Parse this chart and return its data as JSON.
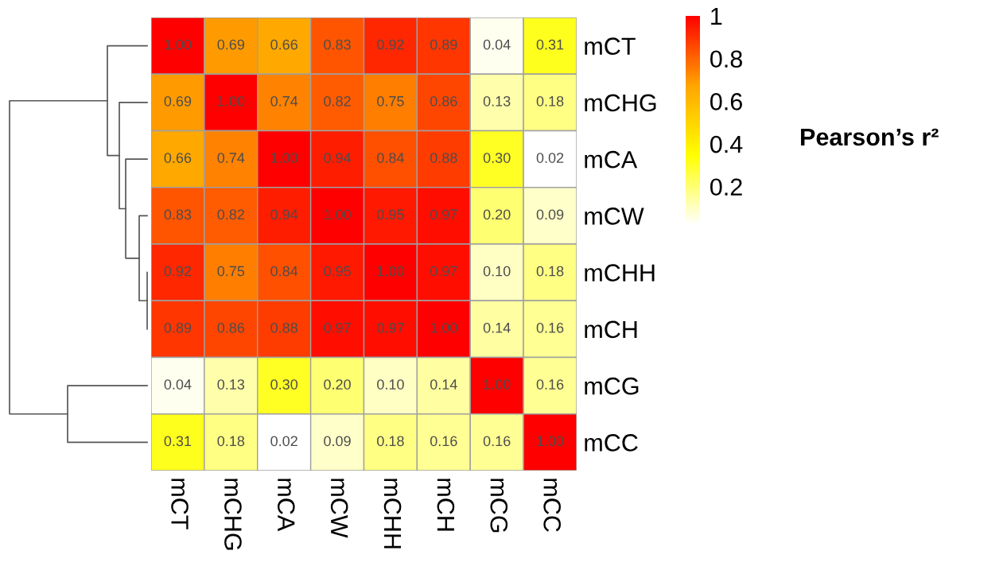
{
  "chart_data": {
    "type": "heatmap",
    "categories": [
      "mCT",
      "mCHG",
      "mCA",
      "mCW",
      "mCHH",
      "mCH",
      "mCG",
      "mCC"
    ],
    "y_categories": [
      "mCT",
      "mCHG",
      "mCA",
      "mCW",
      "mCHH",
      "mCH",
      "mCG",
      "mCC"
    ],
    "cells": [
      [
        1.0,
        0.69,
        0.66,
        0.83,
        0.92,
        0.89,
        0.04,
        0.31
      ],
      [
        0.69,
        1.0,
        0.74,
        0.82,
        0.75,
        0.86,
        0.13,
        0.18
      ],
      [
        0.66,
        0.74,
        1.0,
        0.94,
        0.84,
        0.88,
        0.3,
        0.02
      ],
      [
        0.83,
        0.82,
        0.94,
        1.0,
        0.95,
        0.97,
        0.2,
        0.09
      ],
      [
        0.92,
        0.75,
        0.84,
        0.95,
        1.0,
        0.97,
        0.1,
        0.18
      ],
      [
        0.89,
        0.86,
        0.88,
        0.97,
        0.97,
        1.0,
        0.14,
        0.16
      ],
      [
        0.04,
        0.13,
        0.3,
        0.2,
        0.1,
        0.14,
        1.0,
        0.16
      ],
      [
        0.31,
        0.18,
        0.02,
        0.09,
        0.18,
        0.16,
        0.16,
        1.0
      ]
    ],
    "cell_labels": [
      [
        "1.00",
        "0.69",
        "0.66",
        "0.83",
        "0.92",
        "0.89",
        "0.04",
        "0.31"
      ],
      [
        "0.69",
        "1.00",
        "0.74",
        "0.82",
        "0.75",
        "0.86",
        "0.13",
        "0.18"
      ],
      [
        "0.66",
        "0.74",
        "1.00",
        "0.94",
        "0.84",
        "0.88",
        "0.30",
        "0.02"
      ],
      [
        "0.83",
        "0.82",
        "0.94",
        "1.00",
        "0.95",
        "0.97",
        "0.20",
        "0.09"
      ],
      [
        "0.92",
        "0.75",
        "0.84",
        "0.95",
        "1.00",
        "0.97",
        "0.10",
        "0.18"
      ],
      [
        "0.89",
        "0.86",
        "0.88",
        "0.97",
        "0.97",
        "1.00",
        "0.14",
        "0.16"
      ],
      [
        "0.04",
        "0.13",
        "0.30",
        "0.20",
        "0.10",
        "0.14",
        "1.00",
        "0.16"
      ],
      [
        "0.31",
        "0.18",
        "0.02",
        "0.09",
        "0.18",
        "0.16",
        "0.16",
        "1.00"
      ]
    ],
    "clim": [
      0.02,
      1
    ],
    "cticks": [
      0.2,
      0.4,
      0.6,
      0.8,
      1
    ],
    "clabel": "Pearson’s r²"
  }
}
